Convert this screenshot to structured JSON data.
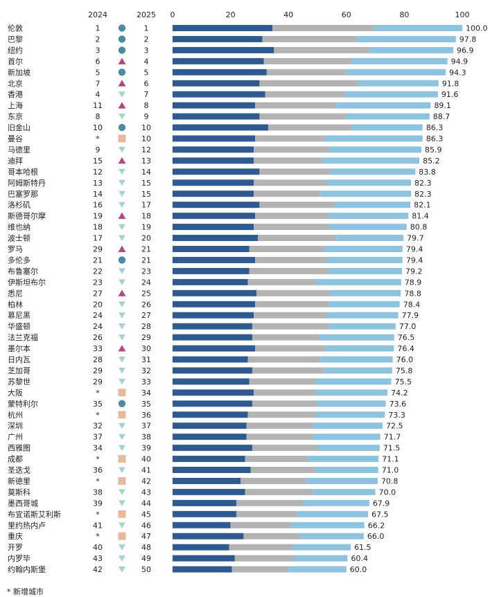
{
  "chart_data": {
    "type": "bar",
    "stacked": true,
    "orientation": "horizontal",
    "title": "",
    "xlabel": "",
    "ylabel": "",
    "xlim": [
      0,
      100
    ],
    "xticks": [
      "0",
      "20",
      "40",
      "60",
      "80",
      "100"
    ],
    "grid": false,
    "legend": "none",
    "column_headers": {
      "rank_2024": "2024",
      "rank_2025": "2025"
    },
    "colors": {
      "segment_1": "#2e5a8f",
      "segment_2": "#b3b3b3",
      "segment_3": "#8ec3e0",
      "up": "#b24a7f",
      "down": "#a3d3c9",
      "same": "#4c8aa8",
      "new": "#e9b89b"
    },
    "rows": [
      {
        "city": "伦敦",
        "rank_2024": "1",
        "rank_2025": "1",
        "change": "same",
        "seg1": 34.5,
        "seg2": 35,
        "seg3": 30.5,
        "total": "100.0"
      },
      {
        "city": "巴黎",
        "rank_2024": "2",
        "rank_2025": "2",
        "change": "same",
        "seg1": 31,
        "seg2": 32.5,
        "seg3": 34.3,
        "total": "97.8"
      },
      {
        "city": "纽约",
        "rank_2024": "3",
        "rank_2025": "3",
        "change": "same",
        "seg1": 35,
        "seg2": 33,
        "seg3": 28.9,
        "total": "96.9"
      },
      {
        "city": "首尔",
        "rank_2024": "6",
        "rank_2025": "4",
        "change": "up",
        "seg1": 31.5,
        "seg2": 30,
        "seg3": 33.4,
        "total": "94.9"
      },
      {
        "city": "新加坡",
        "rank_2024": "5",
        "rank_2025": "5",
        "change": "same",
        "seg1": 32.5,
        "seg2": 27.5,
        "seg3": 34.3,
        "total": "94.3"
      },
      {
        "city": "北京",
        "rank_2024": "7",
        "rank_2025": "6",
        "change": "up",
        "seg1": 30,
        "seg2": 34,
        "seg3": 27.8,
        "total": "91.8"
      },
      {
        "city": "香港",
        "rank_2024": "4",
        "rank_2025": "7",
        "change": "down",
        "seg1": 32,
        "seg2": 27.5,
        "seg3": 32.1,
        "total": "91.6"
      },
      {
        "city": "上海",
        "rank_2024": "11",
        "rank_2025": "8",
        "change": "up",
        "seg1": 28.5,
        "seg2": 28,
        "seg3": 32.6,
        "total": "89.1"
      },
      {
        "city": "东京",
        "rank_2024": "8",
        "rank_2025": "9",
        "change": "down",
        "seg1": 30,
        "seg2": 30,
        "seg3": 28.7,
        "total": "88.7"
      },
      {
        "city": "旧金山",
        "rank_2024": "10",
        "rank_2025": "10",
        "change": "same",
        "seg1": 33,
        "seg2": 29,
        "seg3": 24.3,
        "total": "86.3"
      },
      {
        "city": "曼谷",
        "rank_2024": "*",
        "rank_2025": "10",
        "change": "new",
        "seg1": 28.5,
        "seg2": 24,
        "seg3": 33.8,
        "total": "86.3"
      },
      {
        "city": "马德里",
        "rank_2024": "9",
        "rank_2025": "12",
        "change": "down",
        "seg1": 28,
        "seg2": 26,
        "seg3": 31.9,
        "total": "85.9"
      },
      {
        "city": "迪拜",
        "rank_2024": "15",
        "rank_2025": "13",
        "change": "up",
        "seg1": 28,
        "seg2": 23.5,
        "seg3": 33.7,
        "total": "85.2"
      },
      {
        "city": "哥本哈根",
        "rank_2024": "12",
        "rank_2025": "14",
        "change": "down",
        "seg1": 30,
        "seg2": 24.5,
        "seg3": 29.3,
        "total": "83.8"
      },
      {
        "city": "阿姆斯特丹",
        "rank_2024": "13",
        "rank_2025": "15",
        "change": "down",
        "seg1": 28,
        "seg2": 25,
        "seg3": 29.3,
        "total": "82.3"
      },
      {
        "city": "巴塞罗那",
        "rank_2024": "14",
        "rank_2025": "15",
        "change": "down",
        "seg1": 28,
        "seg2": 23,
        "seg3": 31.3,
        "total": "82.3"
      },
      {
        "city": "洛杉矶",
        "rank_2024": "16",
        "rank_2025": "17",
        "change": "down",
        "seg1": 30,
        "seg2": 26,
        "seg3": 26.1,
        "total": "82.1"
      },
      {
        "city": "斯德哥尔摩",
        "rank_2024": "19",
        "rank_2025": "18",
        "change": "up",
        "seg1": 28.5,
        "seg2": 25,
        "seg3": 27.9,
        "total": "81.4"
      },
      {
        "city": "维也纳",
        "rank_2024": "18",
        "rank_2025": "19",
        "change": "down",
        "seg1": 28,
        "seg2": 26,
        "seg3": 26.8,
        "total": "80.8"
      },
      {
        "city": "波士顿",
        "rank_2024": "17",
        "rank_2025": "20",
        "change": "down",
        "seg1": 29.5,
        "seg2": 27,
        "seg3": 23.2,
        "total": "79.7"
      },
      {
        "city": "罗马",
        "rank_2024": "29",
        "rank_2025": "21",
        "change": "up",
        "seg1": 26.5,
        "seg2": 26,
        "seg3": 26.9,
        "total": "79.4"
      },
      {
        "city": "多伦多",
        "rank_2024": "21",
        "rank_2025": "21",
        "change": "same",
        "seg1": 28.5,
        "seg2": 24.5,
        "seg3": 26.4,
        "total": "79.4"
      },
      {
        "city": "布鲁塞尔",
        "rank_2024": "22",
        "rank_2025": "23",
        "change": "down",
        "seg1": 26.5,
        "seg2": 27,
        "seg3": 25.7,
        "total": "79.2"
      },
      {
        "city": "伊斯坦布尔",
        "rank_2024": "23",
        "rank_2025": "24",
        "change": "down",
        "seg1": 26,
        "seg2": 23.5,
        "seg3": 29.4,
        "total": "78.9"
      },
      {
        "city": "悉尼",
        "rank_2024": "27",
        "rank_2025": "25",
        "change": "up",
        "seg1": 29,
        "seg2": 25.5,
        "seg3": 24.3,
        "total": "78.8"
      },
      {
        "city": "柏林",
        "rank_2024": "20",
        "rank_2025": "26",
        "change": "down",
        "seg1": 28.5,
        "seg2": 25.5,
        "seg3": 24.4,
        "total": "78.4"
      },
      {
        "city": "慕尼黑",
        "rank_2024": "24",
        "rank_2025": "27",
        "change": "down",
        "seg1": 28,
        "seg2": 25,
        "seg3": 24.9,
        "total": "77.9"
      },
      {
        "city": "华盛顿",
        "rank_2024": "24",
        "rank_2025": "28",
        "change": "down",
        "seg1": 27.5,
        "seg2": 26.5,
        "seg3": 23,
        "total": "77.0"
      },
      {
        "city": "法兰克福",
        "rank_2024": "26",
        "rank_2025": "29",
        "change": "down",
        "seg1": 27.5,
        "seg2": 23,
        "seg3": 26,
        "total": "76.5"
      },
      {
        "city": "墨尔本",
        "rank_2024": "33",
        "rank_2025": "30",
        "change": "up",
        "seg1": 28.5,
        "seg2": 24,
        "seg3": 23.9,
        "total": "76.4"
      },
      {
        "city": "日内瓦",
        "rank_2024": "28",
        "rank_2025": "31",
        "change": "down",
        "seg1": 26,
        "seg2": 25,
        "seg3": 25,
        "total": "76.0"
      },
      {
        "city": "芝加哥",
        "rank_2024": "29",
        "rank_2025": "32",
        "change": "down",
        "seg1": 27.5,
        "seg2": 24.5,
        "seg3": 23.8,
        "total": "75.8"
      },
      {
        "city": "苏黎世",
        "rank_2024": "29",
        "rank_2025": "33",
        "change": "down",
        "seg1": 26.5,
        "seg2": 23,
        "seg3": 26,
        "total": "75.5"
      },
      {
        "city": "大阪",
        "rank_2024": "*",
        "rank_2025": "34",
        "change": "new",
        "seg1": 28,
        "seg2": 21.5,
        "seg3": 24.7,
        "total": "74.2"
      },
      {
        "city": "蒙特利尔",
        "rank_2024": "35",
        "rank_2025": "35",
        "change": "same",
        "seg1": 27.5,
        "seg2": 22,
        "seg3": 24.1,
        "total": "73.6"
      },
      {
        "city": "杭州",
        "rank_2024": "*",
        "rank_2025": "36",
        "change": "new",
        "seg1": 26,
        "seg2": 23.5,
        "seg3": 23.8,
        "total": "73.3"
      },
      {
        "city": "深圳",
        "rank_2024": "32",
        "rank_2025": "37",
        "change": "down",
        "seg1": 25.5,
        "seg2": 23,
        "seg3": 24,
        "total": "72.5"
      },
      {
        "city": "广州",
        "rank_2024": "37",
        "rank_2025": "38",
        "change": "down",
        "seg1": 25.5,
        "seg2": 23,
        "seg3": 23.2,
        "total": "71.7"
      },
      {
        "city": "西雅图",
        "rank_2024": "34",
        "rank_2025": "39",
        "change": "down",
        "seg1": 27.5,
        "seg2": 22.5,
        "seg3": 21.5,
        "total": "71.5"
      },
      {
        "city": "成都",
        "rank_2024": "*",
        "rank_2025": "40",
        "change": "new",
        "seg1": 25,
        "seg2": 21.5,
        "seg3": 24.6,
        "total": "71.1"
      },
      {
        "city": "圣迭戈",
        "rank_2024": "36",
        "rank_2025": "41",
        "change": "down",
        "seg1": 27,
        "seg2": 22,
        "seg3": 22,
        "total": "71.0"
      },
      {
        "city": "新德里",
        "rank_2024": "*",
        "rank_2025": "42",
        "change": "new",
        "seg1": 23.5,
        "seg2": 22.5,
        "seg3": 24.8,
        "total": "70.8"
      },
      {
        "city": "莫斯科",
        "rank_2024": "38",
        "rank_2025": "43",
        "change": "down",
        "seg1": 25,
        "seg2": 23.5,
        "seg3": 21.5,
        "total": "70.0"
      },
      {
        "city": "墨西哥城",
        "rank_2024": "39",
        "rank_2025": "44",
        "change": "down",
        "seg1": 22,
        "seg2": 23,
        "seg3": 22.9,
        "total": "67.9"
      },
      {
        "city": "布宜诺斯艾利斯",
        "rank_2024": "*",
        "rank_2025": "45",
        "change": "new",
        "seg1": 22,
        "seg2": 21,
        "seg3": 24.5,
        "total": "67.5"
      },
      {
        "city": "里约热内卢",
        "rank_2024": "41",
        "rank_2025": "46",
        "change": "down",
        "seg1": 20,
        "seg2": 21,
        "seg3": 25.2,
        "total": "66.2"
      },
      {
        "city": "重庆",
        "rank_2024": "*",
        "rank_2025": "47",
        "change": "new",
        "seg1": 24.5,
        "seg2": 19.5,
        "seg3": 22,
        "total": "66.0"
      },
      {
        "city": "开罗",
        "rank_2024": "40",
        "rank_2025": "48",
        "change": "down",
        "seg1": 19.5,
        "seg2": 22,
        "seg3": 20,
        "total": "61.5"
      },
      {
        "city": "内罗毕",
        "rank_2024": "43",
        "rank_2025": "49",
        "change": "down",
        "seg1": 21.5,
        "seg2": 20.5,
        "seg3": 18.4,
        "total": "60.4"
      },
      {
        "city": "约翰内斯堡",
        "rank_2024": "42",
        "rank_2025": "50",
        "change": "down",
        "seg1": 20.5,
        "seg2": 19.5,
        "seg3": 20,
        "total": "60.0"
      }
    ],
    "footnote": "* 新增城市"
  }
}
